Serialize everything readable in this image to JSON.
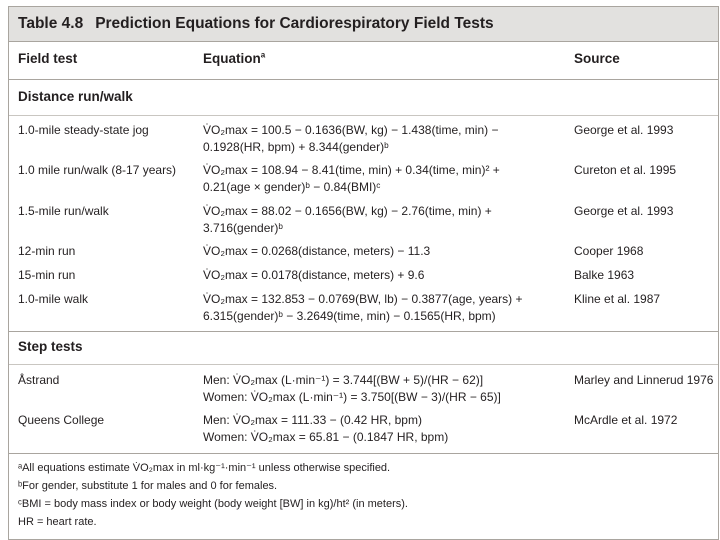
{
  "table": {
    "number": "Table 4.8",
    "title": "Prediction Equations for Cardiorespiratory Field Tests"
  },
  "columns": {
    "field_test": "Field test",
    "equation": "Equation",
    "equation_sup": "a",
    "source": "Source"
  },
  "sections": {
    "distance": "Distance run/walk",
    "step": "Step tests"
  },
  "distance_rows": [
    {
      "test": "1.0-mile steady-state jog",
      "eq1": "V̇O₂max = 100.5 − 0.1636(BW, kg) − 1.438(time, min) −",
      "eq2": "0.1928(HR, bpm) + 8.344(gender)ᵇ",
      "source": "George et al. 1993"
    },
    {
      "test": "1.0 mile run/walk (8-17 years)",
      "eq1": "V̇O₂max = 108.94 − 8.41(time, min) + 0.34(time, min)² +",
      "eq2": "0.21(age × gender)ᵇ − 0.84(BMI)ᶜ",
      "source": "Cureton et al. 1995"
    },
    {
      "test": "1.5-mile run/walk",
      "eq1": "V̇O₂max = 88.02 − 0.1656(BW, kg) − 2.76(time, min) +",
      "eq2": "3.716(gender)ᵇ",
      "source": "George et al. 1993"
    },
    {
      "test": "12-min run",
      "eq1": "V̇O₂max = 0.0268(distance, meters) − 11.3",
      "eq2": "",
      "source": "Cooper 1968"
    },
    {
      "test": "15-min run",
      "eq1": "V̇O₂max = 0.0178(distance, meters) + 9.6",
      "eq2": "",
      "source": "Balke 1963"
    },
    {
      "test": "1.0-mile walk",
      "eq1": "V̇O₂max = 132.853 − 0.0769(BW, lb) − 0.3877(age, years) +",
      "eq2": "6.315(gender)ᵇ − 3.2649(time, min) − 0.1565(HR, bpm)",
      "source": "Kline et al. 1987"
    }
  ],
  "step_rows": [
    {
      "test": "Åstrand",
      "eq1": "Men: V̇O₂max (L·min⁻¹) = 3.744[(BW + 5)/(HR − 62)]",
      "eq2": "Women: V̇O₂max (L·min⁻¹) = 3.750[(BW − 3)/(HR − 65)]",
      "source": "Marley and Linnerud 1976"
    },
    {
      "test": "Queens College",
      "eq1": "Men: V̇O₂max = 111.33 − (0.42 HR, bpm)",
      "eq2": "Women: V̇O₂max = 65.81 − (0.1847 HR, bpm)",
      "source": "McArdle et al. 1972"
    }
  ],
  "footnotes": [
    "ᵃAll equations estimate V̇O₂max in ml·kg⁻¹·min⁻¹ unless otherwise specified.",
    "ᵇFor gender, substitute 1 for males and 0 for females.",
    "ᶜBMI = body mass index or body weight (body weight [BW] in kg)/ht² (in meters).",
    "HR = heart rate."
  ],
  "colors": {
    "title_bg": "#e2e1df",
    "border": "#a9a59f",
    "text": "#231f20"
  }
}
